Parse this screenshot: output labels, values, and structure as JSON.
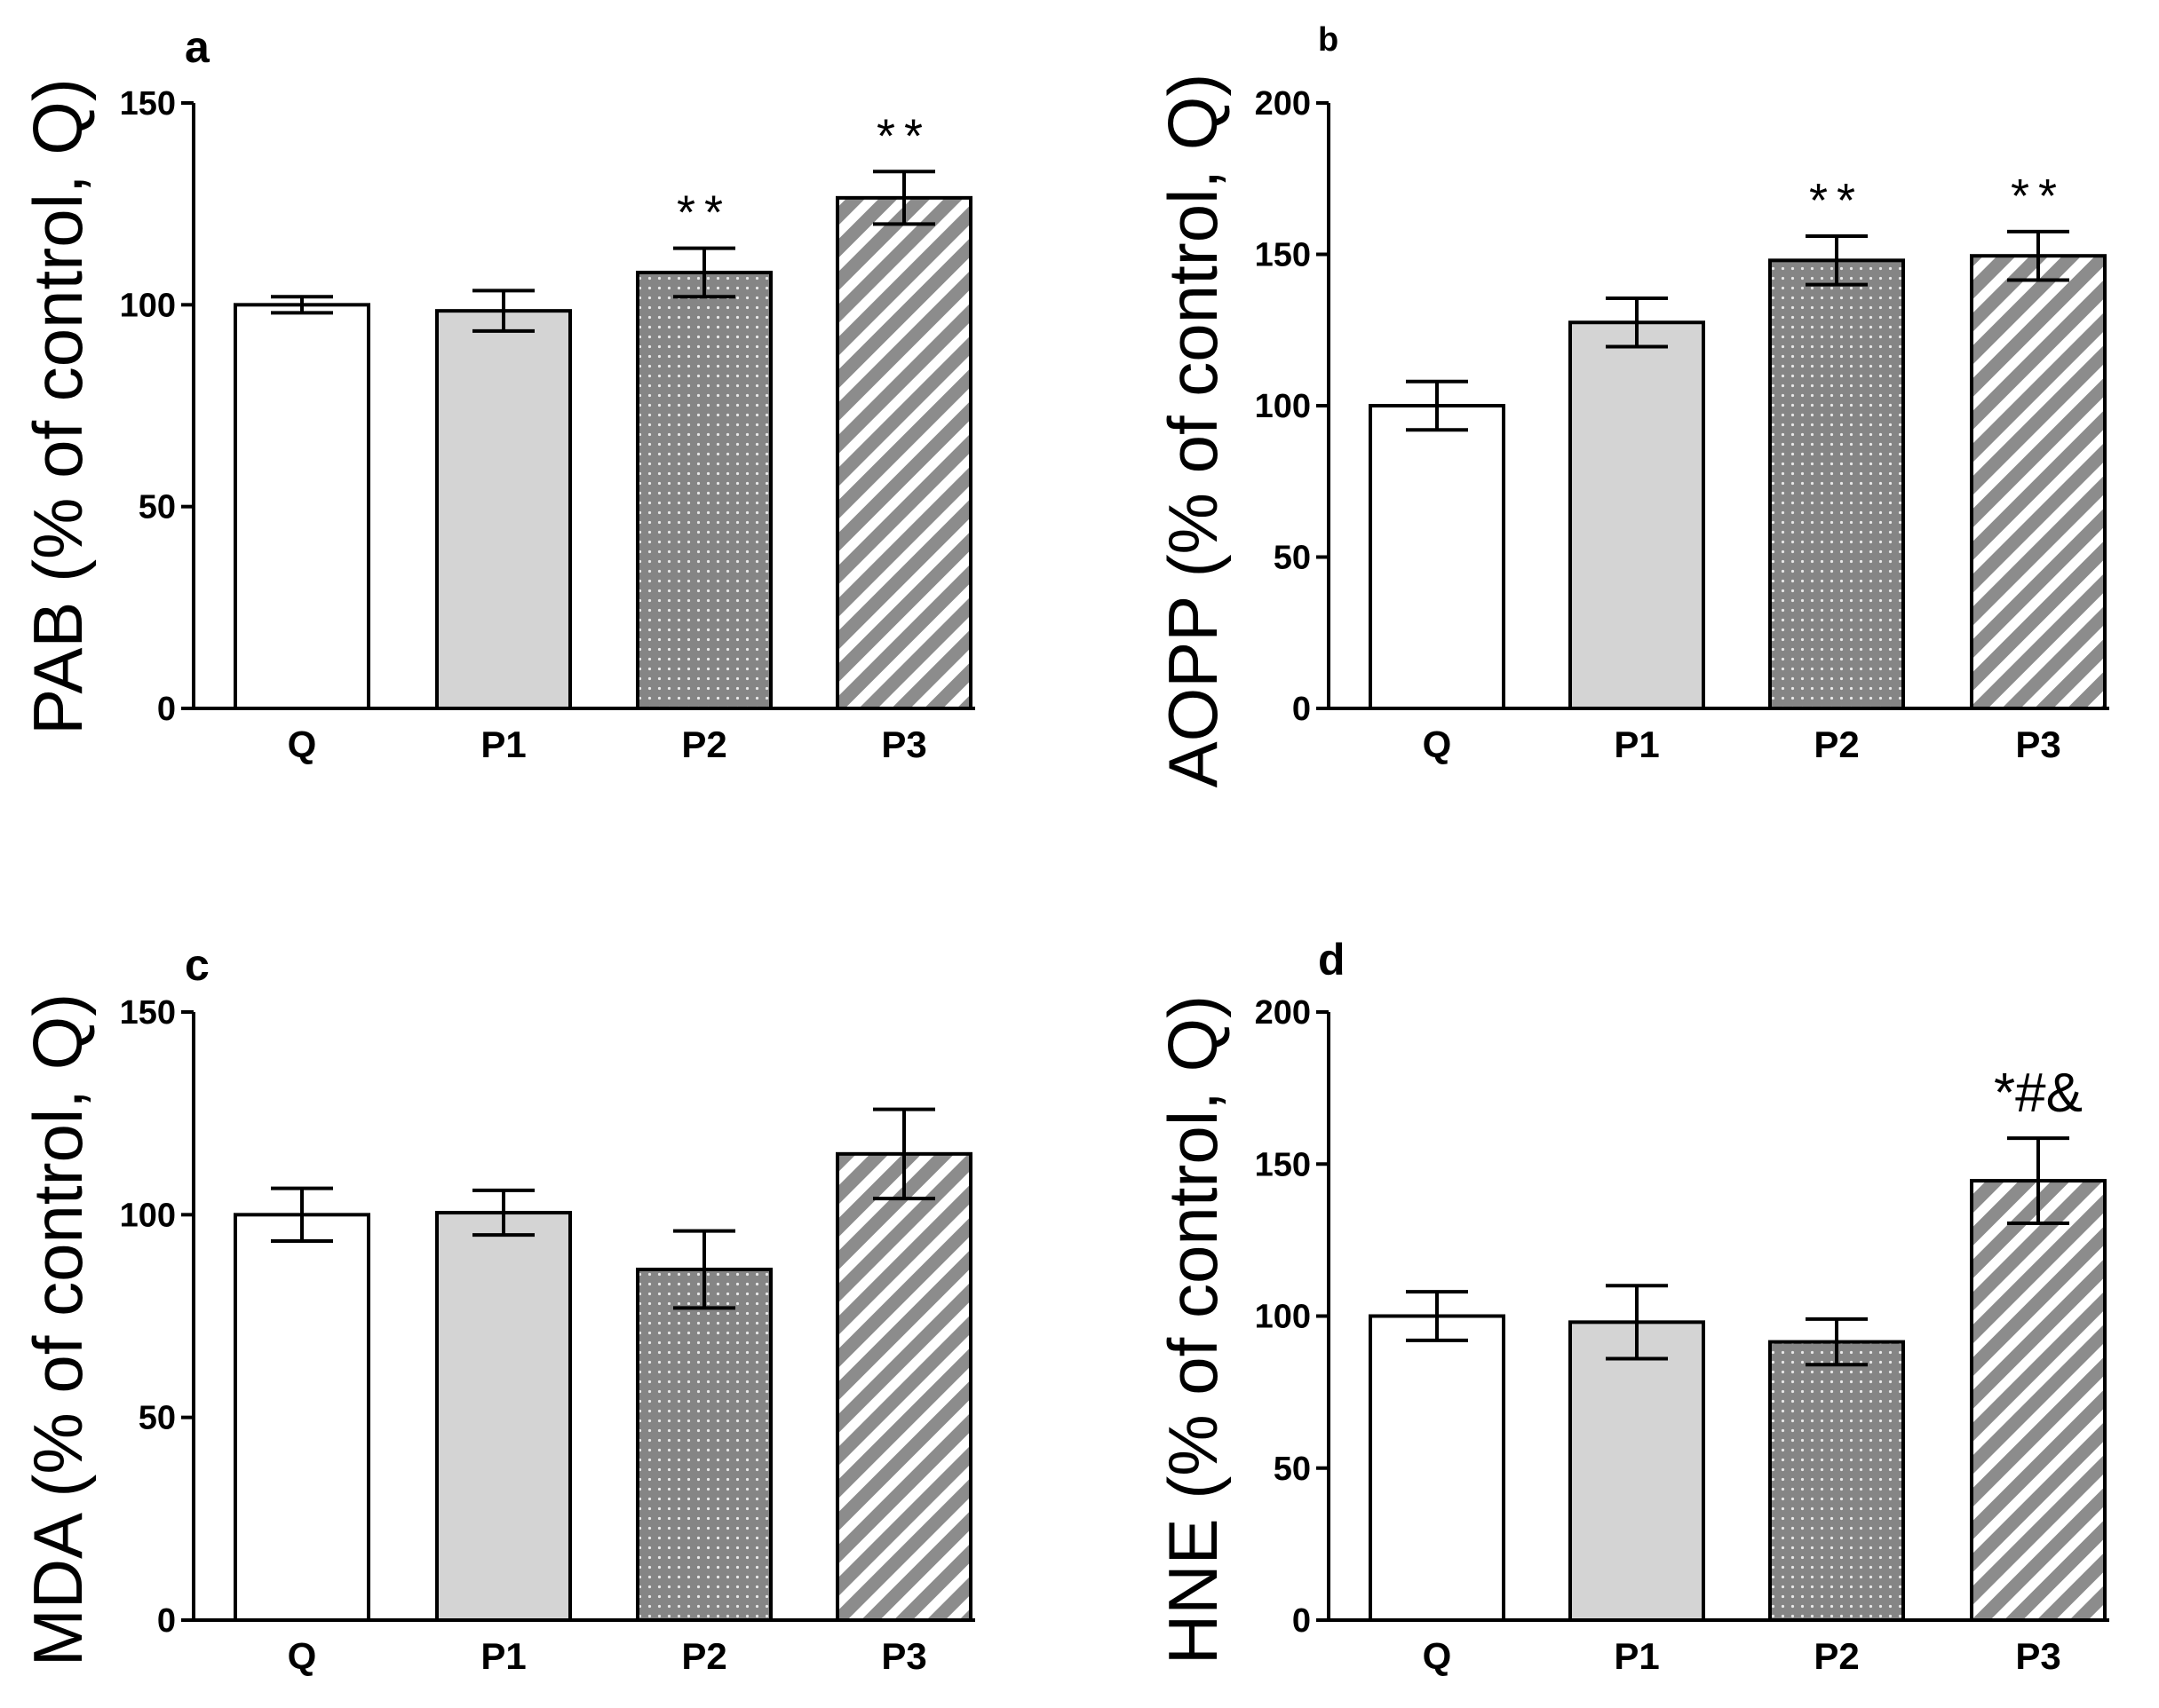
{
  "figure": {
    "colors": {
      "Q": "#ffffff",
      "P1": "#d4d4d4",
      "P2": "#858585",
      "P3": "#8c8c8c",
      "hatch": "#ffffff",
      "stroke": "#000000"
    }
  },
  "chart_data": [
    {
      "panel": "a",
      "type": "bar",
      "ylabel": "PAB (% of control, Q)",
      "categories": [
        "Q",
        "P1",
        "P2",
        "P3"
      ],
      "values": [
        100,
        98.5,
        108,
        126.5
      ],
      "errors": [
        2,
        5,
        6,
        6.5
      ],
      "annotations": [
        "",
        "",
        "**",
        "**"
      ],
      "ylim": [
        0,
        150
      ],
      "yticks": [
        0,
        50,
        100,
        150
      ]
    },
    {
      "panel": "b",
      "type": "bar",
      "ylabel": "AOPP (% of control, Q)",
      "categories": [
        "Q",
        "P1",
        "P2",
        "P3"
      ],
      "values": [
        100,
        127.5,
        148,
        149.5
      ],
      "errors": [
        8,
        8,
        8,
        8
      ],
      "annotations": [
        "",
        "",
        "**",
        "**"
      ],
      "ylim": [
        0,
        200
      ],
      "yticks": [
        0,
        50,
        100,
        150,
        200
      ]
    },
    {
      "panel": "c",
      "type": "bar",
      "ylabel": "MDA (% of control, Q)",
      "categories": [
        "Q",
        "P1",
        "P2",
        "P3"
      ],
      "values": [
        100,
        100.5,
        86.5,
        115
      ],
      "errors": [
        6.5,
        5.5,
        9.5,
        11
      ],
      "annotations": [
        "",
        "",
        "",
        ""
      ],
      "ylim": [
        0,
        150
      ],
      "yticks": [
        0,
        50,
        100,
        150
      ]
    },
    {
      "panel": "d",
      "type": "bar",
      "ylabel": "HNE (% of control, Q)",
      "categories": [
        "Q",
        "P1",
        "P2",
        "P3"
      ],
      "values": [
        100,
        98,
        91.5,
        144.5
      ],
      "errors": [
        8,
        12,
        7.5,
        14
      ],
      "annotations": [
        "",
        "",
        "",
        "*#&"
      ],
      "ylim": [
        0,
        200
      ],
      "yticks": [
        0,
        50,
        100,
        150,
        200
      ]
    }
  ]
}
